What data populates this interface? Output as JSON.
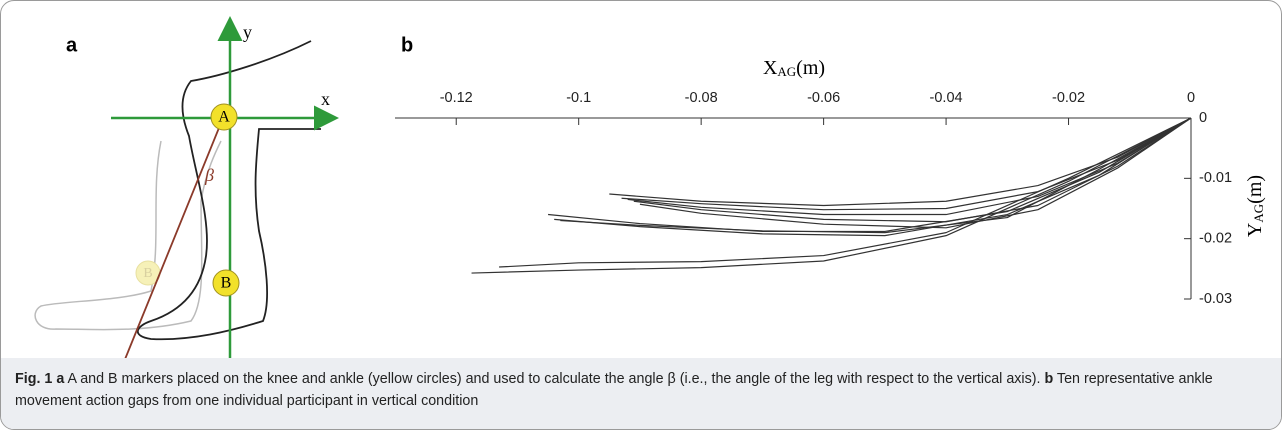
{
  "panel_a": {
    "label": "a",
    "axis_y": "y",
    "axis_x": "x",
    "marker_a": "A",
    "marker_b": "B",
    "marker_b_ghost": "B",
    "angle": "β"
  },
  "chart_data": {
    "type": "line",
    "panel_label": "b",
    "xlabel": "X",
    "xlabel_sub": "AG",
    "xlabel_unit": "(m)",
    "ylabel": "Y",
    "ylabel_sub": "AG",
    "ylabel_unit": "(m)",
    "xlim": [
      -0.13,
      0
    ],
    "xticks": [
      -0.12,
      -0.1,
      -0.08,
      -0.06,
      -0.04,
      -0.02,
      0
    ],
    "ylim": [
      -0.03,
      0
    ],
    "yticks": [
      0,
      -0.01,
      -0.02,
      -0.03
    ],
    "color": "#333333",
    "series": [
      {
        "x": [
          -0.1175,
          -0.1,
          -0.08,
          -0.06,
          -0.04,
          -0.02,
          0
        ],
        "values": [
          -0.0257,
          -0.0252,
          -0.0248,
          -0.0237,
          -0.0195,
          -0.0105,
          0
        ]
      },
      {
        "x": [
          -0.113,
          -0.1,
          -0.08,
          -0.06,
          -0.04,
          -0.02,
          0
        ],
        "values": [
          -0.0247,
          -0.024,
          -0.0238,
          -0.0228,
          -0.019,
          -0.01,
          0
        ]
      },
      {
        "x": [
          -0.105,
          -0.09,
          -0.07,
          -0.05,
          -0.03,
          -0.015,
          0
        ],
        "values": [
          -0.016,
          -0.0175,
          -0.0188,
          -0.0188,
          -0.0155,
          -0.009,
          0
        ]
      },
      {
        "x": [
          -0.104,
          -0.09,
          -0.07,
          -0.05,
          -0.03,
          -0.015,
          0
        ],
        "values": [
          -0.0168,
          -0.018,
          -0.0192,
          -0.0195,
          -0.016,
          -0.0095,
          0
        ]
      },
      {
        "x": [
          -0.103,
          -0.09,
          -0.07,
          -0.05,
          -0.03,
          -0.015,
          0
        ],
        "values": [
          -0.017,
          -0.0178,
          -0.0187,
          -0.019,
          -0.0165,
          -0.0085,
          0
        ]
      },
      {
        "x": [
          -0.095,
          -0.08,
          -0.06,
          -0.04,
          -0.025,
          -0.012,
          0
        ],
        "values": [
          -0.0126,
          -0.0138,
          -0.0145,
          -0.0138,
          -0.0112,
          -0.0065,
          0
        ]
      },
      {
        "x": [
          -0.093,
          -0.08,
          -0.06,
          -0.04,
          -0.025,
          -0.012,
          0
        ],
        "values": [
          -0.0133,
          -0.0142,
          -0.0152,
          -0.015,
          -0.0122,
          -0.007,
          0
        ]
      },
      {
        "x": [
          -0.092,
          -0.08,
          -0.06,
          -0.04,
          -0.025,
          -0.012,
          0
        ],
        "values": [
          -0.0135,
          -0.0148,
          -0.016,
          -0.016,
          -0.013,
          -0.0075,
          0
        ]
      },
      {
        "x": [
          -0.091,
          -0.08,
          -0.06,
          -0.04,
          -0.025,
          -0.012,
          0
        ],
        "values": [
          -0.0138,
          -0.0152,
          -0.0168,
          -0.0172,
          -0.0145,
          -0.008,
          0
        ]
      },
      {
        "x": [
          -0.09,
          -0.08,
          -0.06,
          -0.04,
          -0.025,
          -0.012,
          0
        ],
        "values": [
          -0.0143,
          -0.0158,
          -0.0176,
          -0.0182,
          -0.0152,
          -0.0083,
          0
        ]
      }
    ]
  },
  "caption": {
    "fig": "Fig. 1",
    "a_label": "a",
    "a_text": "A and B markers placed on the knee and ankle (yellow circles) and used to calculate the angle β (i.e., the angle of the leg with respect to the vertical axis).",
    "b_label": "b",
    "b_text": "Ten representative ankle movement action gaps from one individual participant in vertical condition"
  }
}
